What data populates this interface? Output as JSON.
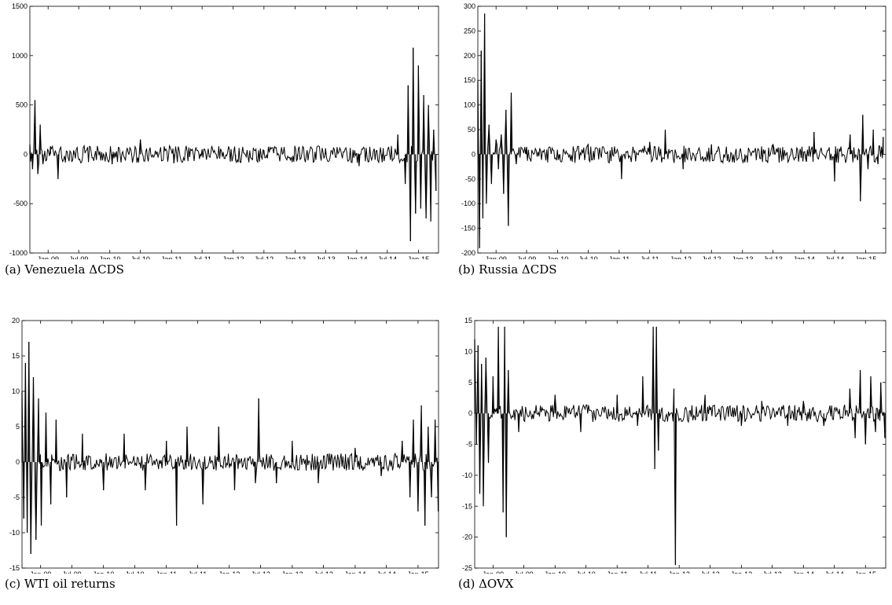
{
  "figure": {
    "captions": [
      "(a) Venezuela ΔCDS",
      "(b) Russia ΔCDS",
      "(c) WTI oil returns",
      "(d) ΔOVX"
    ]
  },
  "chart_data": [
    {
      "type": "line",
      "title": "",
      "xlabel": "",
      "ylabel": "",
      "x_tick_labels": [
        "Jan-09",
        "Jul-09",
        "Jan-10",
        "Jul-10",
        "Jan-11",
        "Jul-11",
        "Jan-12",
        "Jul-12",
        "Jan-13",
        "Jul-13",
        "Jan-14",
        "Jul-14",
        "Jan-15"
      ],
      "x_range": [
        "2008-09-15",
        "2015-04-30"
      ],
      "ylim": [
        -1000,
        1500
      ],
      "y_ticks": [
        -1000,
        -500,
        0,
        500,
        1000,
        1500
      ],
      "grid": false,
      "series": [
        {
          "x": [
            "2008-09-15",
            "2008-10-01",
            "2008-10-15",
            "2008-11-01",
            "2008-11-15",
            "2008-12-01",
            "2009-01-15",
            "2009-03-01",
            "2009-06-01",
            "2010-01-15",
            "2010-07-01",
            "2011-01-15",
            "2011-07-01",
            "2012-01-15",
            "2012-07-01",
            "2013-01-15",
            "2013-07-01",
            "2014-01-15",
            "2014-06-01",
            "2014-09-01",
            "2014-10-15",
            "2014-11-01",
            "2014-11-15",
            "2014-12-01",
            "2014-12-15",
            "2015-01-01",
            "2015-01-15",
            "2015-02-01",
            "2015-02-15",
            "2015-03-01",
            "2015-03-15",
            "2015-04-01",
            "2015-04-15"
          ],
          "values": [
            100,
            -150,
            550,
            -200,
            300,
            -100,
            80,
            -250,
            40,
            -100,
            150,
            -90,
            50,
            -60,
            40,
            -50,
            60,
            -120,
            -80,
            200,
            -300,
            700,
            -880,
            1080,
            -600,
            900,
            -550,
            600,
            -650,
            500,
            -680,
            250,
            -370
          ]
        }
      ]
    },
    {
      "type": "line",
      "title": "",
      "xlabel": "",
      "ylabel": "",
      "x_tick_labels": [
        "Jan-09",
        "Jul-09",
        "Jan-10",
        "Jul-10",
        "Jan-11",
        "Jul-11",
        "Jan-12",
        "Jul-12",
        "Jan-13",
        "Jul-13",
        "Jan-14",
        "Jul-14",
        "Jan-15"
      ],
      "x_range": [
        "2008-09-15",
        "2015-04-30"
      ],
      "ylim": [
        -200,
        300
      ],
      "y_ticks": [
        -200,
        -150,
        -100,
        -50,
        0,
        50,
        100,
        150,
        200,
        250,
        300
      ],
      "grid": false,
      "series": [
        {
          "x": [
            "2008-09-15",
            "2008-09-25",
            "2008-10-05",
            "2008-10-15",
            "2008-10-25",
            "2008-11-05",
            "2008-11-20",
            "2008-12-05",
            "2009-01-01",
            "2009-01-15",
            "2009-02-01",
            "2009-02-15",
            "2009-03-01",
            "2009-03-15",
            "2009-04-01",
            "2009-05-01",
            "2009-07-01",
            "2010-01-15",
            "2010-07-01",
            "2011-01-15",
            "2011-07-01",
            "2011-10-01",
            "2012-01-15",
            "2012-07-01",
            "2013-01-15",
            "2013-07-01",
            "2014-01-15",
            "2014-03-01",
            "2014-07-01",
            "2014-10-01",
            "2014-12-01",
            "2014-12-15",
            "2015-01-15",
            "2015-02-15",
            "2015-03-15",
            "2015-04-15"
          ],
          "values": [
            150,
            -190,
            210,
            -130,
            285,
            -100,
            60,
            -60,
            30,
            -30,
            40,
            -80,
            90,
            -145,
            125,
            -20,
            15,
            -10,
            20,
            -50,
            25,
            50,
            -30,
            20,
            -15,
            20,
            -15,
            45,
            -55,
            40,
            -95,
            80,
            -30,
            50,
            -20,
            35
          ]
        }
      ]
    },
    {
      "type": "line",
      "title": "",
      "xlabel": "",
      "ylabel": "",
      "x_tick_labels": [
        "Jan-09",
        "Jul-09",
        "Jan-10",
        "Jul-10",
        "Jan-11",
        "Jul-11",
        "Jan-12",
        "Jul-12",
        "Jan-13",
        "Jul-13",
        "Jan-14",
        "Jul-14",
        "Jan-15"
      ],
      "x_range": [
        "2008-09-15",
        "2015-04-30"
      ],
      "ylim": [
        -15,
        20
      ],
      "y_ticks": [
        -15,
        -10,
        -5,
        0,
        5,
        10,
        15,
        20
      ],
      "grid": false,
      "series": [
        {
          "x": [
            "2008-09-15",
            "2008-09-25",
            "2008-10-05",
            "2008-10-15",
            "2008-10-25",
            "2008-11-05",
            "2008-11-20",
            "2008-12-05",
            "2008-12-20",
            "2009-01-05",
            "2009-02-01",
            "2009-03-01",
            "2009-04-01",
            "2009-06-01",
            "2009-09-01",
            "2010-01-01",
            "2010-05-01",
            "2010-09-01",
            "2011-01-01",
            "2011-03-01",
            "2011-05-01",
            "2011-08-01",
            "2011-11-01",
            "2012-02-01",
            "2012-06-01",
            "2012-06-20",
            "2012-10-01",
            "2013-01-01",
            "2013-06-01",
            "2014-01-01",
            "2014-06-01",
            "2014-10-01",
            "2014-11-15",
            "2014-12-05",
            "2015-01-01",
            "2015-01-20",
            "2015-02-10",
            "2015-03-01",
            "2015-03-20",
            "2015-04-10",
            "2015-04-28"
          ],
          "values": [
            10,
            -8,
            14,
            -10,
            17,
            -13,
            12,
            -11,
            9,
            -9,
            7,
            -6,
            6,
            -5,
            4,
            -4,
            4,
            -4,
            3,
            -9,
            5,
            -6,
            5,
            -4,
            -3,
            9,
            -3,
            3,
            -3,
            2,
            -2,
            3,
            -5,
            6,
            -7,
            8,
            -9,
            5,
            -5,
            6,
            -7
          ]
        }
      ]
    },
    {
      "type": "line",
      "title": "",
      "xlabel": "",
      "ylabel": "",
      "x_tick_labels": [
        "Jan-09",
        "Jul-09",
        "Jan-10",
        "Jul-10",
        "Jan-11",
        "Jul-11",
        "Jan-12",
        "Jul-12",
        "Jan-13",
        "Jul-13",
        "Jan-14",
        "Jul-14",
        "Jan-15"
      ],
      "x_range": [
        "2008-09-15",
        "2015-04-30"
      ],
      "ylim": [
        -25,
        15
      ],
      "y_ticks": [
        -25,
        -20,
        -15,
        -10,
        -5,
        0,
        5,
        10,
        15
      ],
      "grid": false,
      "series": [
        {
          "x": [
            "2008-09-15",
            "2008-09-25",
            "2008-10-05",
            "2008-10-15",
            "2008-10-25",
            "2008-11-05",
            "2008-11-20",
            "2008-12-05",
            "2009-01-01",
            "2009-02-01",
            "2009-03-01",
            "2009-03-10",
            "2009-03-20",
            "2009-04-01",
            "2009-06-01",
            "2010-01-01",
            "2010-06-01",
            "2011-01-01",
            "2011-05-01",
            "2011-06-01",
            "2011-08-01",
            "2011-08-10",
            "2011-08-20",
            "2011-09-01",
            "2011-12-01",
            "2011-12-10",
            "2012-06-01",
            "2013-01-01",
            "2013-05-01",
            "2013-10-01",
            "2014-01-01",
            "2014-05-01",
            "2014-10-01",
            "2014-11-01",
            "2014-12-01",
            "2015-01-01",
            "2015-02-01",
            "2015-03-01",
            "2015-04-01",
            "2015-04-25"
          ],
          "values": [
            12,
            -5,
            11,
            -13,
            8,
            -15,
            9,
            -8,
            6,
            14,
            -16,
            14,
            -20,
            7,
            -3,
            3,
            -3,
            3,
            -2,
            6,
            14,
            -9,
            14,
            -6,
            4,
            -24.5,
            3,
            -2,
            2,
            -2,
            2,
            -2,
            4,
            -4,
            7,
            -5,
            6,
            -3,
            5,
            -4
          ]
        }
      ]
    }
  ]
}
